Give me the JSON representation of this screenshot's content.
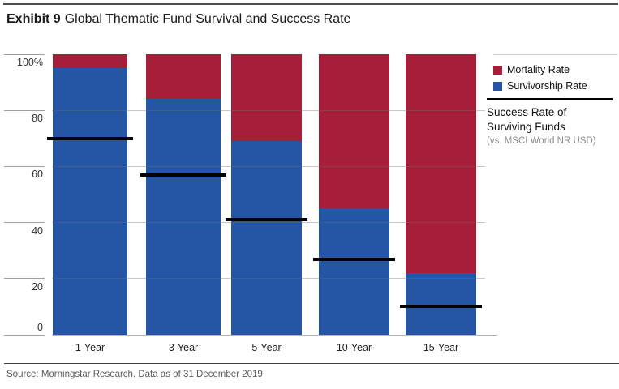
{
  "title": {
    "exhibit": "Exhibit 9",
    "text": "Global Thematic Fund Survival and Success Rate"
  },
  "legend": {
    "mortality_label": "Mortality Rate",
    "survivorship_label": "Survivorship Rate",
    "success_label_line1": "Success Rate of",
    "success_label_line2": "Surviving Funds",
    "success_sublabel": "(vs. MSCI World NR USD)"
  },
  "colors": {
    "mortality": "#A71E3B",
    "survivorship": "#2456A5",
    "success_line": "#000000"
  },
  "source": "Source: Morningstar Research. Data as of 31 December 2019",
  "chart_data": {
    "type": "bar",
    "stacked": true,
    "title": "Global Thematic Fund Survival and Success Rate",
    "categories": [
      "1-Year",
      "3-Year",
      "5-Year",
      "10-Year",
      "15-Year"
    ],
    "series": [
      {
        "name": "Survivorship Rate",
        "color": "#2456A5",
        "values": [
          95,
          84,
          69,
          45,
          22
        ]
      },
      {
        "name": "Mortality Rate",
        "color": "#A71E3B",
        "values": [
          5,
          16,
          31,
          55,
          78
        ]
      }
    ],
    "markers": {
      "name": "Success Rate of Surviving Funds (vs. MSCI World NR USD)",
      "color": "#000000",
      "values": [
        70,
        57,
        41,
        27,
        10
      ]
    },
    "xlabel": "",
    "ylabel": "",
    "ylim": [
      0,
      100
    ],
    "yticks": [
      "100%",
      "80",
      "60",
      "40",
      "20",
      "0"
    ],
    "ytick_values": [
      100,
      80,
      60,
      40,
      20,
      0
    ],
    "grid": true,
    "legend_position": "right"
  }
}
